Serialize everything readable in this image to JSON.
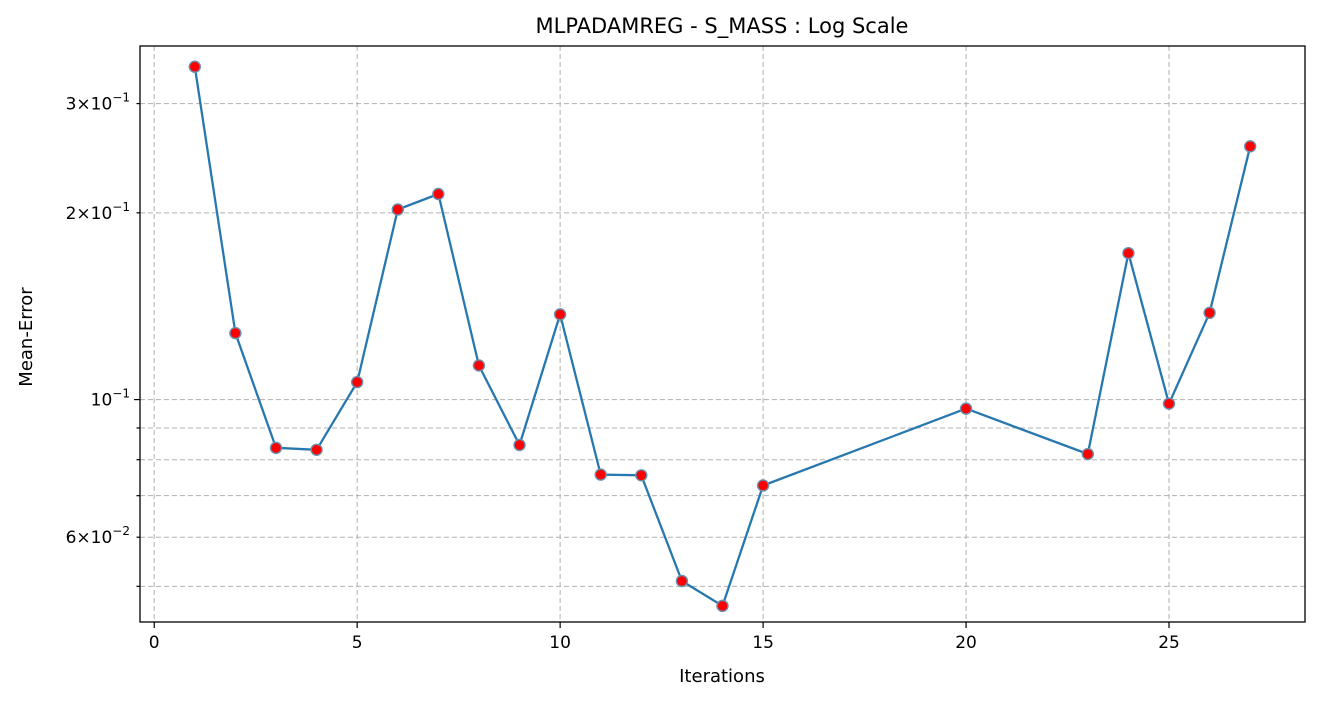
{
  "chart_data": {
    "type": "line",
    "title": "MLPADAMREG - S_MASS : Log Scale",
    "xlabel": "Iterations",
    "ylabel": "Mean-Error",
    "xlim": [
      -0.35,
      28.35
    ],
    "ylim": [
      0.0438,
      0.3715
    ],
    "yscale": "log",
    "grid": true,
    "x_ticks": [
      {
        "value": 0,
        "label": "0"
      },
      {
        "value": 5,
        "label": "5"
      },
      {
        "value": 10,
        "label": "10"
      },
      {
        "value": 15,
        "label": "15"
      },
      {
        "value": 20,
        "label": "20"
      },
      {
        "value": 25,
        "label": "25"
      }
    ],
    "y_major_ticks": [
      {
        "value": 0.1,
        "base": "10",
        "exp": "−1"
      }
    ],
    "y_minor_ticks": [
      {
        "value": 0.06,
        "coef": "6",
        "base": "10",
        "exp": "−2"
      },
      {
        "value": 0.2,
        "coef": "2",
        "base": "10",
        "exp": "−1"
      },
      {
        "value": 0.3,
        "coef": "3",
        "base": "10",
        "exp": "−1"
      }
    ],
    "y_unlabeled_minor": [
      0.05,
      0.07,
      0.08,
      0.09
    ],
    "line_color": "#2878b0",
    "marker_face": "#ff0000",
    "marker_edge": "#6a8fb0",
    "series": [
      {
        "x": [
          1,
          2,
          3,
          4,
          5,
          6,
          7,
          8,
          9,
          10,
          11,
          12,
          13,
          14,
          15,
          20,
          23,
          24,
          25,
          26,
          27
        ],
        "y": [
          0.344,
          0.128,
          0.0836,
          0.083,
          0.1067,
          0.2025,
          0.2145,
          0.1135,
          0.0845,
          0.1372,
          0.0757,
          0.0755,
          0.051,
          0.0465,
          0.0727,
          0.0967,
          0.0817,
          0.1722,
          0.0985,
          0.138,
          0.256
        ]
      }
    ]
  }
}
